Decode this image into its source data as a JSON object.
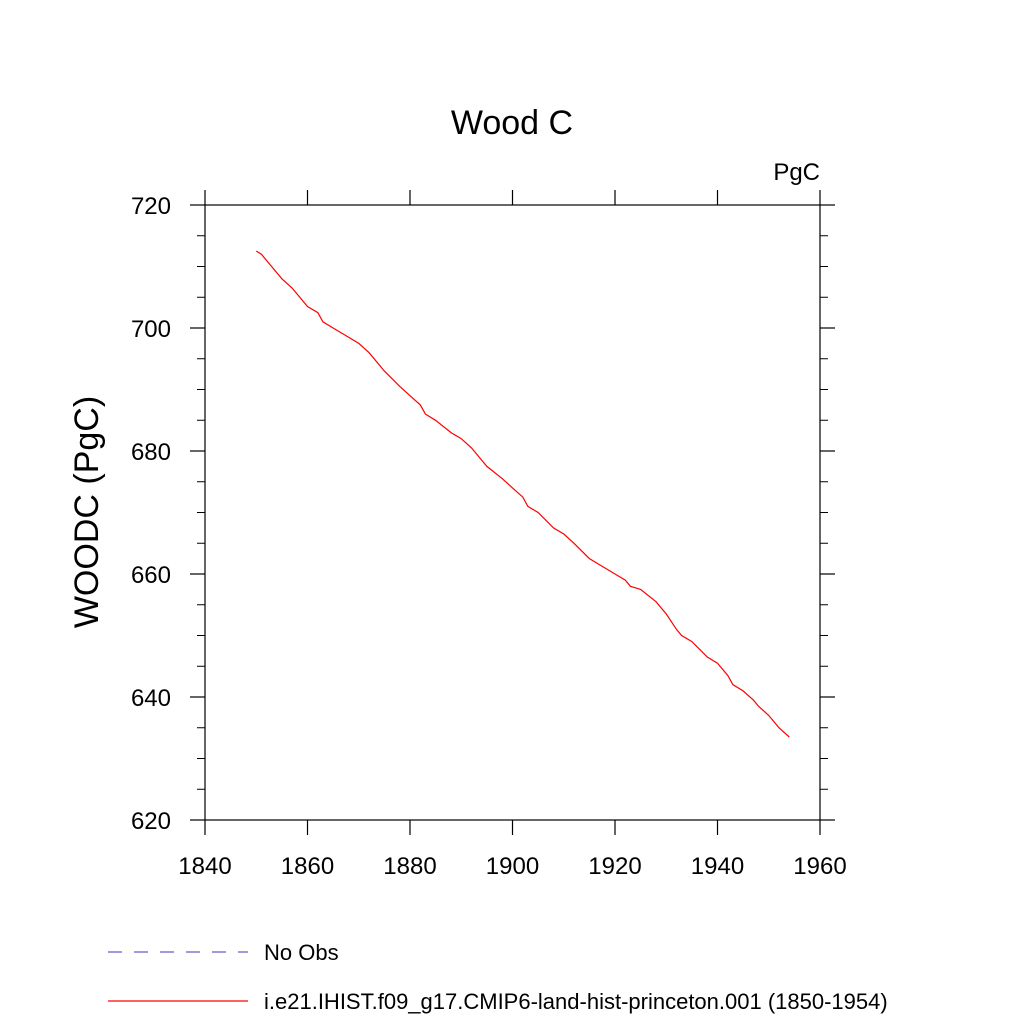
{
  "chart_data": {
    "type": "line",
    "title": "Wood C",
    "units": "PgC",
    "xlabel": "",
    "ylabel": "WOODC  (PgC)",
    "xlim": [
      1840,
      1960
    ],
    "ylim": [
      620,
      720
    ],
    "xticks": [
      1840,
      1860,
      1880,
      1900,
      1920,
      1940,
      1960
    ],
    "yticks": [
      620,
      640,
      660,
      680,
      700,
      720
    ],
    "grid": false,
    "legend_position": "bottom",
    "series": [
      {
        "name": "No Obs",
        "color": "#6a5acd",
        "style": "dashed",
        "x": [],
        "y": []
      },
      {
        "name": "i.e21.IHIST.f09_g17.CMIP6-land-hist-princeton.001 (1850-1954)",
        "color": "#ff0000",
        "style": "solid",
        "x": [
          1850,
          1851,
          1852,
          1853,
          1855,
          1857,
          1860,
          1862,
          1863,
          1865,
          1867,
          1870,
          1872,
          1875,
          1878,
          1880,
          1882,
          1883,
          1885,
          1888,
          1890,
          1892,
          1895,
          1898,
          1900,
          1902,
          1903,
          1905,
          1908,
          1910,
          1912,
          1915,
          1918,
          1920,
          1922,
          1923,
          1925,
          1928,
          1930,
          1932,
          1933,
          1935,
          1938,
          1940,
          1942,
          1943,
          1945,
          1947,
          1948,
          1950,
          1952,
          1954
        ],
        "y": [
          712.5,
          712.0,
          711.0,
          710.0,
          708.0,
          706.5,
          703.5,
          702.5,
          701.0,
          700.0,
          699.0,
          697.5,
          696.0,
          693.0,
          690.5,
          689.0,
          687.5,
          686.0,
          685.0,
          683.0,
          682.0,
          680.5,
          677.5,
          675.5,
          674.0,
          672.5,
          671.0,
          670.0,
          667.5,
          666.5,
          665.0,
          662.5,
          661.0,
          660.0,
          659.0,
          658.0,
          657.5,
          655.5,
          653.5,
          651.0,
          650.0,
          649.0,
          646.5,
          645.5,
          643.5,
          642.0,
          641.0,
          639.5,
          638.5,
          637.0,
          635.0,
          633.5
        ]
      }
    ]
  }
}
